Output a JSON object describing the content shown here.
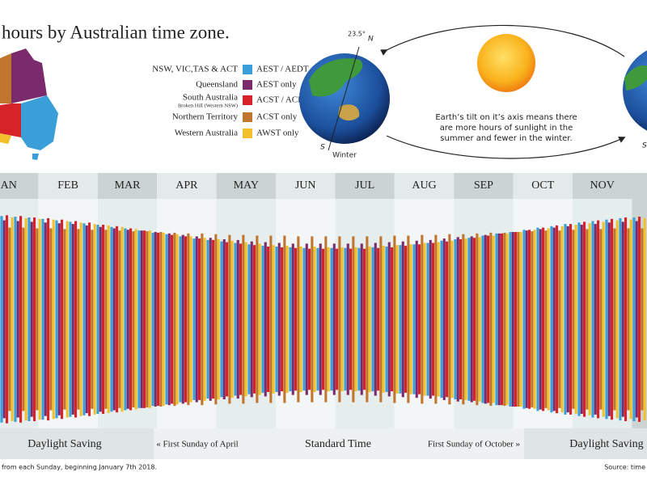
{
  "chart_data": {
    "type": "bar",
    "title": "hours by Australian time zone.",
    "months": [
      "AN",
      "FEB",
      "MAR",
      "APR",
      "MAY",
      "JUN",
      "JUL",
      "AUG",
      "SEP",
      "OCT",
      "NOV"
    ],
    "periods": [
      "Daylight Saving",
      "« First Sunday of April",
      "Standard Time",
      "First Sunday of October »",
      "Daylight Saving"
    ],
    "series": [
      {
        "region": "NSW, VIC,TAS & ACT",
        "name": "AEST / AEDT",
        "color": "#3a9fd8",
        "values": [
          14.2,
          14.1,
          14.0,
          13.8,
          13.6,
          13.4,
          13.2,
          13.0,
          12.7,
          12.5,
          12.2,
          11.9,
          11.7,
          11.4,
          11.1,
          10.9,
          10.7,
          10.5,
          10.3,
          10.1,
          10.0,
          9.9,
          9.8,
          9.8,
          9.8,
          9.8,
          9.8,
          9.9,
          10.0,
          10.2,
          10.3,
          10.5,
          10.8,
          11.0,
          11.2,
          11.5,
          11.8,
          12.0,
          12.3,
          12.6,
          12.8,
          13.1,
          13.3,
          13.5,
          13.7,
          13.9,
          14.0
        ]
      },
      {
        "region": "Queensland",
        "name": "AEST only",
        "color": "#7b2a6b",
        "values": [
          13.6,
          13.5,
          13.4,
          13.3,
          13.2,
          13.1,
          12.9,
          12.7,
          12.5,
          12.3,
          12.2,
          12.0,
          11.8,
          11.6,
          11.4,
          11.2,
          11.0,
          10.9,
          10.7,
          10.6,
          10.5,
          10.4,
          10.4,
          10.4,
          10.4,
          10.4,
          10.4,
          10.5,
          10.6,
          10.7,
          10.8,
          10.9,
          11.1,
          11.3,
          11.4,
          11.6,
          11.8,
          12.0,
          12.2,
          12.4,
          12.6,
          12.8,
          13.0,
          13.1,
          13.3,
          13.4,
          13.5
        ]
      },
      {
        "region": "South Australia",
        "region_note": "Broken Hill (Western NSW)",
        "name": "ACST / ACDT",
        "color": "#d62229",
        "values": [
          14.3,
          14.2,
          14.0,
          13.9,
          13.7,
          13.5,
          13.3,
          13.0,
          12.8,
          12.5,
          12.2,
          11.9,
          11.6,
          11.4,
          11.1,
          10.9,
          10.6,
          10.4,
          10.2,
          10.0,
          9.9,
          9.8,
          9.7,
          9.7,
          9.7,
          9.7,
          9.7,
          9.8,
          9.9,
          10.1,
          10.3,
          10.5,
          10.7,
          11.0,
          11.2,
          11.5,
          11.8,
          12.0,
          12.3,
          12.6,
          12.9,
          13.1,
          13.4,
          13.6,
          13.8,
          14.0,
          14.1
        ]
      },
      {
        "region": "Northern Territory",
        "name": "ACST only",
        "color": "#c0762f",
        "values": [
          12.6,
          12.6,
          12.5,
          12.5,
          12.4,
          12.4,
          12.3,
          12.3,
          12.2,
          12.1,
          12.1,
          12.0,
          11.9,
          11.8,
          11.8,
          11.7,
          11.6,
          11.6,
          11.5,
          11.5,
          11.5,
          11.4,
          11.4,
          11.4,
          11.4,
          11.4,
          11.4,
          11.4,
          11.5,
          11.5,
          11.6,
          11.6,
          11.7,
          11.7,
          11.8,
          11.9,
          11.9,
          12.0,
          12.1,
          12.2,
          12.2,
          12.3,
          12.4,
          12.4,
          12.5,
          12.5,
          12.5
        ]
      },
      {
        "region": "Western Australia",
        "name": "AWST only",
        "color": "#f2c02a",
        "values": [
          14.0,
          13.9,
          13.8,
          13.7,
          13.5,
          13.3,
          13.1,
          12.9,
          12.7,
          12.4,
          12.2,
          11.9,
          11.7,
          11.4,
          11.2,
          11.0,
          10.8,
          10.6,
          10.4,
          10.2,
          10.1,
          10.0,
          10.0,
          9.9,
          9.9,
          9.9,
          10.0,
          10.1,
          10.2,
          10.3,
          10.5,
          10.6,
          10.8,
          11.1,
          11.3,
          11.5,
          11.8,
          12.0,
          12.3,
          12.5,
          12.8,
          13.0,
          13.2,
          13.4,
          13.6,
          13.7,
          13.9
        ]
      }
    ],
    "diagram": {
      "tilt": "23.5°",
      "north": "N",
      "south": "S",
      "season": "Winter",
      "south_right": "S",
      "caption": [
        "Earth’s tilt on it’s axis means there",
        "are more hours of sunlight in the",
        "summer and fewer in the winter."
      ]
    },
    "footnote": "from each Sunday, beginning January 7th 2018.",
    "source": "Source: time"
  }
}
